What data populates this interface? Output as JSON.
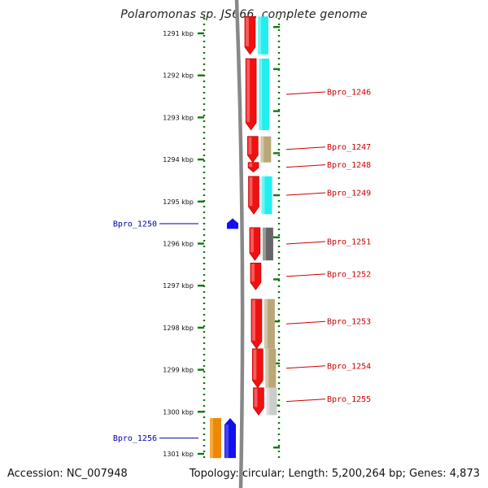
{
  "title": "Polaromonas sp. JS666, complete genome",
  "footer": {
    "accession": "Accession: NC_007948",
    "topology": "Topology: circular; Length: 5,200,264 bp; Genes: 4,873"
  },
  "axis": {
    "unit": "kbp",
    "tick_labels": [
      "1291 kbp",
      "1292 kbp",
      "1293 kbp",
      "1294 kbp",
      "1295 kbp",
      "1296 kbp",
      "1297 kbp",
      "1298 kbp",
      "1299 kbp",
      "1300 kbp",
      "1301 kbp"
    ]
  },
  "colors": {
    "forward_gene": "#ee1111",
    "reverse_gene": "#1111ee",
    "cyan_category": "#22eeee",
    "olive_category": "#b8a878",
    "darkgray_category": "#666666",
    "lightgray_category": "#cccccc",
    "orange_category": "#ee8800",
    "backbone": "#888888",
    "ticks": "#117711",
    "forward_label": "#cc0000",
    "reverse_label": "#0000aa"
  },
  "genes": [
    {
      "name": "",
      "strand": "+",
      "start_kbp": 1290.6,
      "end_kbp": 1291.5,
      "category": "cyan_category"
    },
    {
      "name": "Bpro_1246",
      "strand": "+",
      "start_kbp": 1291.6,
      "end_kbp": 1293.3,
      "category": "cyan_category"
    },
    {
      "name": "Bpro_1247",
      "strand": "+",
      "start_kbp": 1293.45,
      "end_kbp": 1294.07,
      "category": "olive_category"
    },
    {
      "name": "Bpro_1248",
      "strand": "+",
      "start_kbp": 1294.07,
      "end_kbp": 1294.3,
      "category": ""
    },
    {
      "name": "Bpro_1249",
      "strand": "+",
      "start_kbp": 1294.4,
      "end_kbp": 1295.3,
      "category": "cyan_category"
    },
    {
      "name": "Bpro_1250",
      "strand": "-",
      "start_kbp": 1295.4,
      "end_kbp": 1295.65,
      "category": ""
    },
    {
      "name": "Bpro_1251",
      "strand": "+",
      "start_kbp": 1295.62,
      "end_kbp": 1296.4,
      "category": "darkgray_category"
    },
    {
      "name": "Bpro_1252",
      "strand": "+",
      "start_kbp": 1296.46,
      "end_kbp": 1297.1,
      "category": ""
    },
    {
      "name": "Bpro_1253",
      "strand": "+",
      "start_kbp": 1297.32,
      "end_kbp": 1298.5,
      "category": "olive_category"
    },
    {
      "name": "Bpro_1254",
      "strand": "+",
      "start_kbp": 1298.5,
      "end_kbp": 1299.43,
      "category": "olive_category"
    },
    {
      "name": "Bpro_1255",
      "strand": "+",
      "start_kbp": 1299.43,
      "end_kbp": 1300.08,
      "category": "lightgray_category"
    },
    {
      "name": "Bpro_1256",
      "strand": "-",
      "start_kbp": 1300.15,
      "end_kbp": 1301.1,
      "category": "orange_category"
    }
  ]
}
